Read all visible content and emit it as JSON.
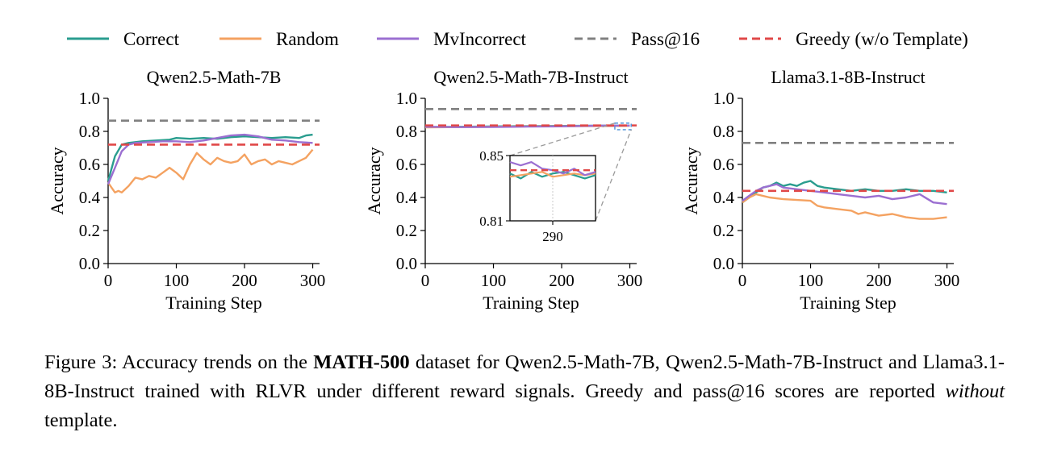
{
  "legend": [
    {
      "label": "Correct",
      "color": "#2a9d8f",
      "dash": "solid"
    },
    {
      "label": "Random",
      "color": "#f4a261",
      "dash": "solid"
    },
    {
      "label": "MvIncorrect",
      "color": "#9b6fd1",
      "dash": "solid"
    },
    {
      "label": "Pass@16",
      "color": "#808080",
      "dash": "dashed"
    },
    {
      "label": "Greedy (w/o Template)",
      "color": "#e04848",
      "dash": "dashed"
    }
  ],
  "chart_data": [
    {
      "type": "line",
      "title": "Qwen2.5-Math-7B",
      "xlabel": "Training Step",
      "ylabel": "Accuracy",
      "xlim": [
        0,
        310
      ],
      "ylim": [
        0,
        1.0
      ],
      "xticks": [
        0,
        100,
        200,
        300
      ],
      "yticks": [
        0.0,
        0.2,
        0.4,
        0.6,
        0.8,
        1.0
      ],
      "hlines": [
        {
          "name": "Pass@16",
          "value": 0.865,
          "color": "#808080"
        },
        {
          "name": "Greedy (w/o Template)",
          "value": 0.72,
          "color": "#e04848"
        }
      ],
      "series": [
        {
          "name": "Correct",
          "color": "#2a9d8f",
          "x": [
            0,
            10,
            20,
            30,
            50,
            70,
            90,
            100,
            120,
            140,
            160,
            180,
            200,
            220,
            240,
            260,
            280,
            290,
            300
          ],
          "y": [
            0.5,
            0.65,
            0.72,
            0.73,
            0.74,
            0.745,
            0.75,
            0.76,
            0.755,
            0.76,
            0.755,
            0.765,
            0.77,
            0.765,
            0.76,
            0.765,
            0.76,
            0.775,
            0.78
          ]
        },
        {
          "name": "Random",
          "color": "#f4a261",
          "x": [
            0,
            5,
            10,
            15,
            20,
            30,
            40,
            50,
            60,
            70,
            80,
            90,
            100,
            110,
            120,
            130,
            140,
            150,
            160,
            170,
            180,
            190,
            200,
            210,
            220,
            230,
            240,
            250,
            260,
            270,
            280,
            290,
            300
          ],
          "y": [
            0.49,
            0.46,
            0.43,
            0.44,
            0.43,
            0.47,
            0.52,
            0.51,
            0.53,
            0.52,
            0.55,
            0.58,
            0.55,
            0.51,
            0.6,
            0.67,
            0.63,
            0.6,
            0.64,
            0.62,
            0.61,
            0.62,
            0.66,
            0.6,
            0.62,
            0.63,
            0.6,
            0.62,
            0.61,
            0.6,
            0.62,
            0.64,
            0.69
          ]
        },
        {
          "name": "MvIncorrect",
          "color": "#9b6fd1",
          "x": [
            0,
            10,
            20,
            30,
            40,
            60,
            80,
            100,
            120,
            140,
            160,
            180,
            200,
            220,
            240,
            260,
            280,
            300
          ],
          "y": [
            0.48,
            0.58,
            0.68,
            0.72,
            0.73,
            0.735,
            0.74,
            0.74,
            0.735,
            0.745,
            0.76,
            0.775,
            0.78,
            0.77,
            0.75,
            0.745,
            0.735,
            0.73
          ]
        }
      ]
    },
    {
      "type": "line",
      "title": "Qwen2.5-Math-7B-Instruct",
      "xlabel": "Training Step",
      "ylabel": "Accuracy",
      "xlim": [
        0,
        310
      ],
      "ylim": [
        0,
        1.0
      ],
      "xticks": [
        0,
        100,
        200,
        300
      ],
      "yticks": [
        0.0,
        0.2,
        0.4,
        0.6,
        0.8,
        1.0
      ],
      "hlines": [
        {
          "name": "Pass@16",
          "value": 0.935,
          "color": "#808080"
        },
        {
          "name": "Greedy (w/o Template)",
          "value": 0.836,
          "color": "#e04848"
        }
      ],
      "series": [
        {
          "name": "Correct",
          "color": "#2a9d8f",
          "x": [
            0,
            50,
            100,
            150,
            200,
            250,
            300
          ],
          "y": [
            0.826,
            0.828,
            0.83,
            0.832,
            0.833,
            0.834,
            0.835
          ]
        },
        {
          "name": "Random",
          "color": "#f4a261",
          "x": [
            0,
            50,
            100,
            150,
            200,
            250,
            300
          ],
          "y": [
            0.824,
            0.826,
            0.828,
            0.83,
            0.831,
            0.832,
            0.833
          ]
        },
        {
          "name": "MvIncorrect",
          "color": "#9b6fd1",
          "x": [
            0,
            50,
            100,
            150,
            200,
            250,
            300
          ],
          "y": [
            0.828,
            0.826,
            0.827,
            0.829,
            0.83,
            0.834,
            0.835
          ]
        }
      ],
      "inset": {
        "ylim": [
          0.81,
          0.85
        ],
        "yticks": [
          0.81,
          0.85
        ],
        "xlim": [
          278,
          302
        ],
        "xticks": [
          290
        ],
        "series": [
          {
            "name": "Correct",
            "color": "#2a9d8f",
            "x": [
              278,
              281,
              284,
              287,
              290,
              293,
              296,
              299,
              302
            ],
            "y": [
              0.839,
              0.836,
              0.84,
              0.837,
              0.839,
              0.84,
              0.838,
              0.836,
              0.838
            ]
          },
          {
            "name": "Random",
            "color": "#f4a261",
            "x": [
              278,
              281,
              284,
              287,
              290,
              293,
              296,
              299,
              302
            ],
            "y": [
              0.837,
              0.838,
              0.839,
              0.84,
              0.837,
              0.838,
              0.839,
              0.838,
              0.839
            ]
          },
          {
            "name": "MvIncorrect",
            "color": "#9b6fd1",
            "x": [
              278,
              281,
              284,
              287,
              290,
              293,
              296,
              299,
              302
            ],
            "y": [
              0.846,
              0.844,
              0.846,
              0.842,
              0.841,
              0.839,
              0.842,
              0.838,
              0.84
            ]
          }
        ],
        "hline": 0.841
      }
    },
    {
      "type": "line",
      "title": "Llama3.1-8B-Instruct",
      "xlabel": "Training Step",
      "ylabel": "Accuracy",
      "xlim": [
        0,
        310
      ],
      "ylim": [
        0,
        1.0
      ],
      "xticks": [
        0,
        100,
        200,
        300
      ],
      "yticks": [
        0.0,
        0.2,
        0.4,
        0.6,
        0.8,
        1.0
      ],
      "hlines": [
        {
          "name": "Pass@16",
          "value": 0.73,
          "color": "#808080"
        },
        {
          "name": "Greedy (w/o Template)",
          "value": 0.44,
          "color": "#e04848"
        }
      ],
      "series": [
        {
          "name": "Correct",
          "color": "#2a9d8f",
          "x": [
            0,
            10,
            20,
            30,
            40,
            50,
            60,
            70,
            80,
            90,
            100,
            110,
            120,
            140,
            160,
            180,
            200,
            220,
            240,
            260,
            280,
            300
          ],
          "y": [
            0.37,
            0.4,
            0.43,
            0.46,
            0.47,
            0.49,
            0.47,
            0.48,
            0.47,
            0.49,
            0.5,
            0.47,
            0.46,
            0.45,
            0.44,
            0.45,
            0.44,
            0.44,
            0.45,
            0.44,
            0.44,
            0.43
          ]
        },
        {
          "name": "Random",
          "color": "#f4a261",
          "x": [
            0,
            10,
            20,
            40,
            60,
            80,
            100,
            110,
            120,
            140,
            160,
            170,
            180,
            200,
            220,
            240,
            260,
            280,
            300
          ],
          "y": [
            0.37,
            0.4,
            0.42,
            0.4,
            0.39,
            0.385,
            0.38,
            0.35,
            0.34,
            0.33,
            0.32,
            0.3,
            0.31,
            0.29,
            0.3,
            0.28,
            0.27,
            0.27,
            0.28
          ]
        },
        {
          "name": "MvIncorrect",
          "color": "#9b6fd1",
          "x": [
            0,
            10,
            20,
            30,
            40,
            50,
            60,
            80,
            100,
            120,
            140,
            160,
            180,
            200,
            220,
            240,
            260,
            280,
            300
          ],
          "y": [
            0.38,
            0.41,
            0.44,
            0.46,
            0.47,
            0.48,
            0.46,
            0.45,
            0.44,
            0.43,
            0.42,
            0.41,
            0.4,
            0.41,
            0.39,
            0.4,
            0.42,
            0.37,
            0.36
          ]
        }
      ]
    }
  ],
  "caption": {
    "prefix": "Figure 3:  Accuracy trends on the ",
    "bold": "MATH-500",
    "middle": " dataset for Qwen2.5-Math-7B, Qwen2.5-Math-7B-Instruct and Llama3.1-8B-Instruct trained with RLVR under different reward signals. Greedy and pass@16 scores are reported ",
    "italic": "without",
    "suffix": " template."
  }
}
